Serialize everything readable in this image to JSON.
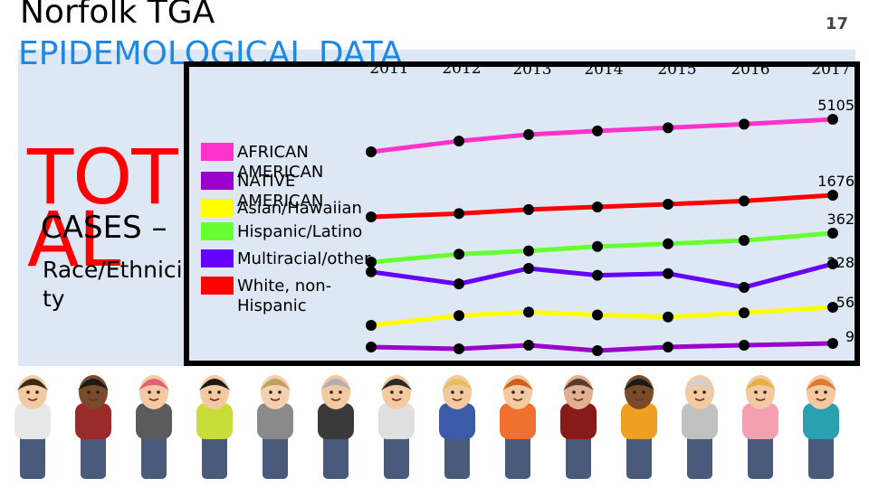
{
  "slide": {
    "title_line1": "Norfolk TGA",
    "title_line2": "EPIDEMOLOGICAL DATA",
    "slide_number": "17",
    "big_text": "TOTAL",
    "sub_line1": "CASES –",
    "sub_line2": "Race/Ethnicity"
  },
  "colors": {
    "panel": "#dde8f4",
    "title_accent": "#1e88e5",
    "total_text": "#ff0000"
  },
  "chart_data": {
    "type": "line",
    "x": [
      "2011",
      "2012",
      "2013",
      "2014",
      "2015",
      "2016",
      "2017"
    ],
    "end_labels": [
      "5105",
      "1676",
      "362",
      "228",
      "56",
      "9"
    ],
    "legend_labels": [
      "AFRICAN AMERICAN",
      "NATIVE AMERICAN",
      "Asian/Hawaiian",
      "Hispanic/Latino",
      "Multiracial/other",
      "White, non-Hispanic"
    ],
    "series": [
      {
        "name": "AFRICAN AMERICAN",
        "color": "#ff33cc",
        "values": [
          4200,
          4500,
          4680,
          4780,
          4870,
          4970,
          5105
        ]
      },
      {
        "name": "NATIVE AMERICAN",
        "color": "#9900cc",
        "values": [
          7,
          6,
          8,
          5,
          7,
          8,
          9
        ]
      },
      {
        "name": "Asian/Hawaiian",
        "color": "#ffff00",
        "values": [
          30,
          44,
          49,
          45,
          42,
          48,
          56
        ]
      },
      {
        "name": "Hispanic/Latino",
        "color": "#66ff33",
        "values": [
          215,
          255,
          272,
          294,
          308,
          325,
          362
        ]
      },
      {
        "name": "Multiracial/other",
        "color": "#6600ff",
        "values": [
          205,
          170,
          215,
          195,
          200,
          160,
          228
        ]
      },
      {
        "name": "White, non-Hispanic",
        "color": "#ff0000",
        "values": [
          1350,
          1400,
          1460,
          1500,
          1540,
          1590,
          1676
        ]
      }
    ]
  }
}
